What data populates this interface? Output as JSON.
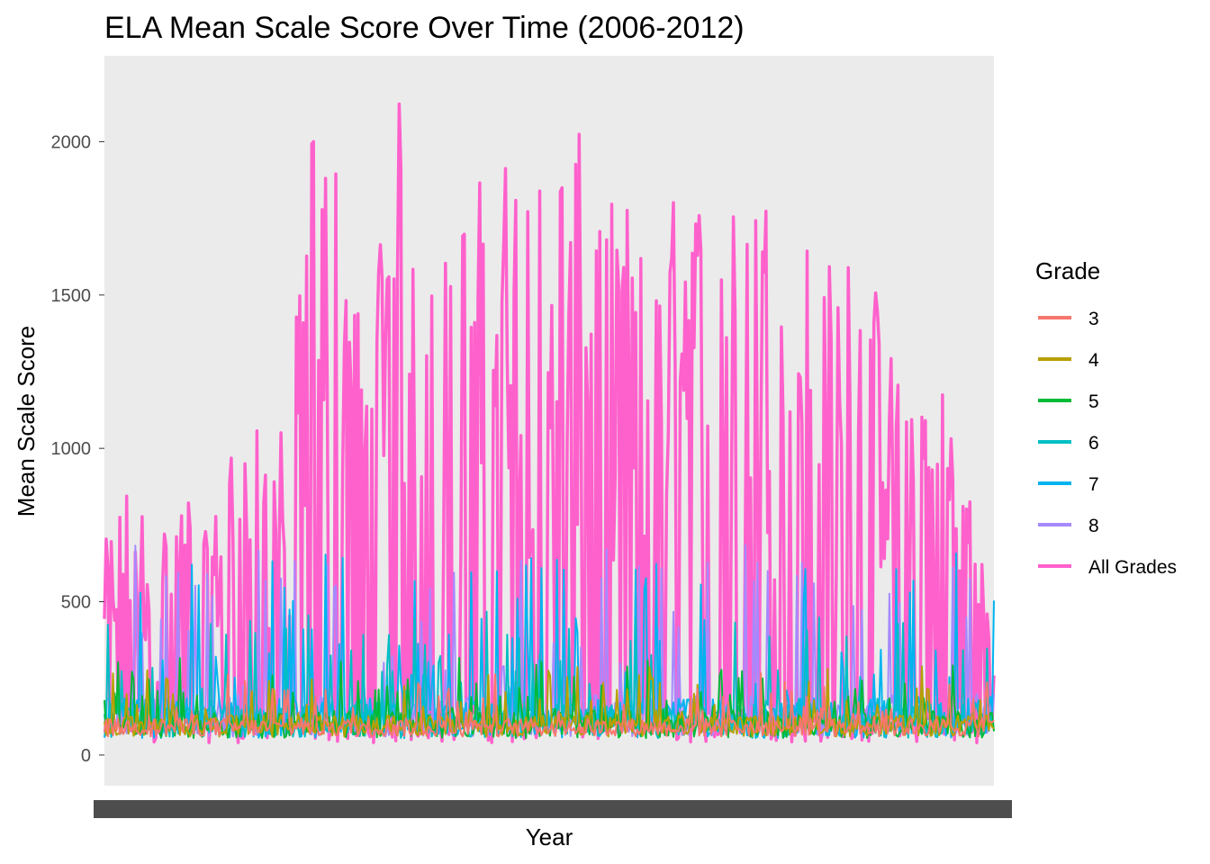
{
  "chart_data": {
    "type": "line",
    "title": "ELA Mean Scale Score Over Time (2006-2012)",
    "xlabel": "Year",
    "ylabel": "Mean Scale Score",
    "ylim": [
      -100,
      2280
    ],
    "y_ticks": [
      0,
      500,
      1000,
      1500,
      2000
    ],
    "y_tick_labels": [
      "0",
      "500",
      "1000",
      "1500",
      "2000"
    ],
    "x_tick_labels_note": "overplotted, illegible",
    "legend": {
      "title": "Grade",
      "position": "right"
    },
    "grid": false,
    "panel_background": "#ebebeb",
    "series": [
      {
        "name": "3",
        "color": "#F8766D",
        "level": 60,
        "spread": 60,
        "peak_max": 270
      },
      {
        "name": "4",
        "color": "#B79F00",
        "level": 60,
        "spread": 70,
        "peak_max": 290
      },
      {
        "name": "5",
        "color": "#00BA38",
        "level": 55,
        "spread": 90,
        "peak_max": 320
      },
      {
        "name": "6",
        "color": "#00BFC4",
        "level": 55,
        "spread": 110,
        "peak_max": 470
      },
      {
        "name": "7",
        "color": "#00B4EF",
        "level": 55,
        "spread": 130,
        "peak_max": 660
      },
      {
        "name": "8",
        "color": "#A58AFF",
        "level": 60,
        "spread": 140,
        "peak_max": 720
      },
      {
        "name": "All Grades",
        "color": "#FF61CC",
        "level": 150,
        "spread": 1000,
        "peak_max": 2220
      }
    ],
    "all_grades_peaks": [
      690,
      930,
      710,
      920,
      700,
      1110,
      1060,
      1090,
      2110,
      1950,
      1280,
      2220,
      1920,
      1640,
      1850,
      1980,
      1960,
      1920,
      2060,
      1830,
      1810,
      1550,
      1920,
      1820,
      1800,
      1880,
      1830,
      1700,
      1590,
      1720,
      1330,
      1300,
      1270,
      960,
      430
    ]
  }
}
